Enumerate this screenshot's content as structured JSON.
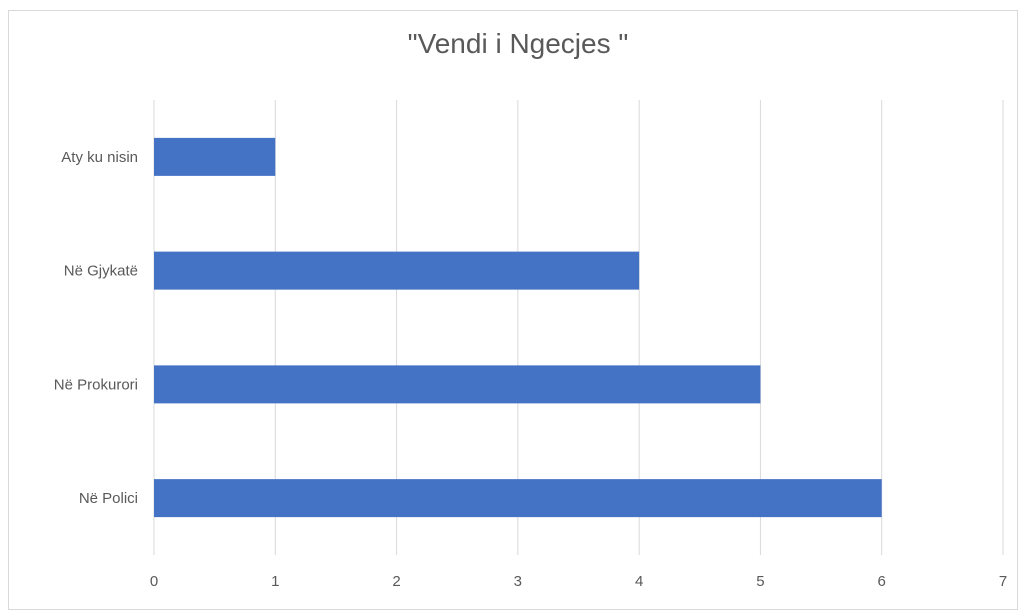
{
  "chart_data": {
    "type": "bar",
    "orientation": "horizontal",
    "title": "\"Vendi i Ngecjes \"",
    "categories": [
      "Aty ku nisin",
      "Në Gjykatë",
      "Në Prokurori",
      "Në Polici"
    ],
    "values": [
      1,
      4,
      5,
      6
    ],
    "xlim": [
      0,
      7
    ],
    "xticks": [
      0,
      1,
      2,
      3,
      4,
      5,
      6,
      7
    ],
    "grid": "vertical",
    "legend": "none",
    "bar_color": "#4472c4",
    "grid_color": "#d9d9d9",
    "text_color": "#595959"
  }
}
